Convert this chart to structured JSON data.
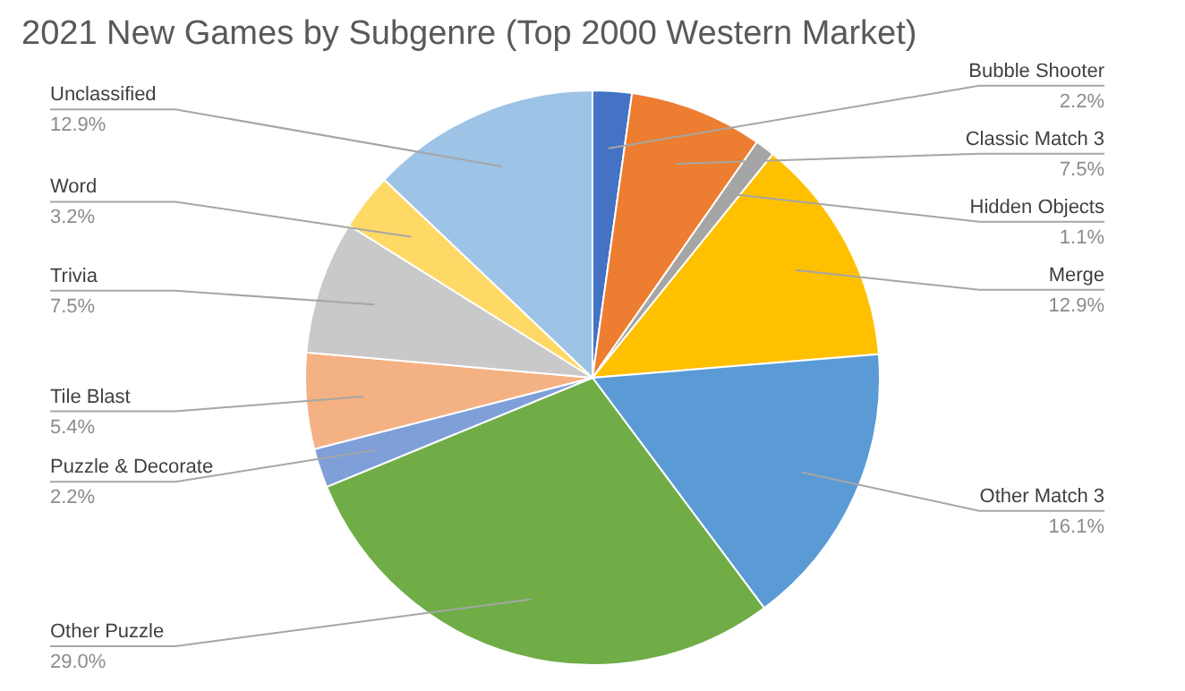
{
  "chart_data": {
    "type": "pie",
    "title": "2021 New Games by Subgenre (Top 2000 Western Market)",
    "categories": [
      "Bubble Shooter",
      "Classic Match 3",
      "Hidden Objects",
      "Merge",
      "Other Match 3",
      "Other Puzzle",
      "Puzzle & Decorate",
      "Tile Blast",
      "Trivia",
      "Word",
      "Unclassified"
    ],
    "values": [
      2.2,
      7.5,
      1.1,
      12.9,
      16.1,
      29.0,
      2.2,
      5.4,
      7.5,
      3.2,
      12.9
    ],
    "colors": [
      "#4472c4",
      "#ed7d31",
      "#a5a5a5",
      "#ffc000",
      "#5b9bd5",
      "#70ad47",
      "#7f9fd8",
      "#f4b183",
      "#c9c9c9",
      "#ffd966",
      "#9dc3e6"
    ],
    "value_labels": [
      "2.2%",
      "7.5%",
      "1.1%",
      "12.9%",
      "16.1%",
      "29.0%",
      "2.2%",
      "5.4%",
      "7.5%",
      "3.2%",
      "12.9%"
    ],
    "legend": false
  }
}
